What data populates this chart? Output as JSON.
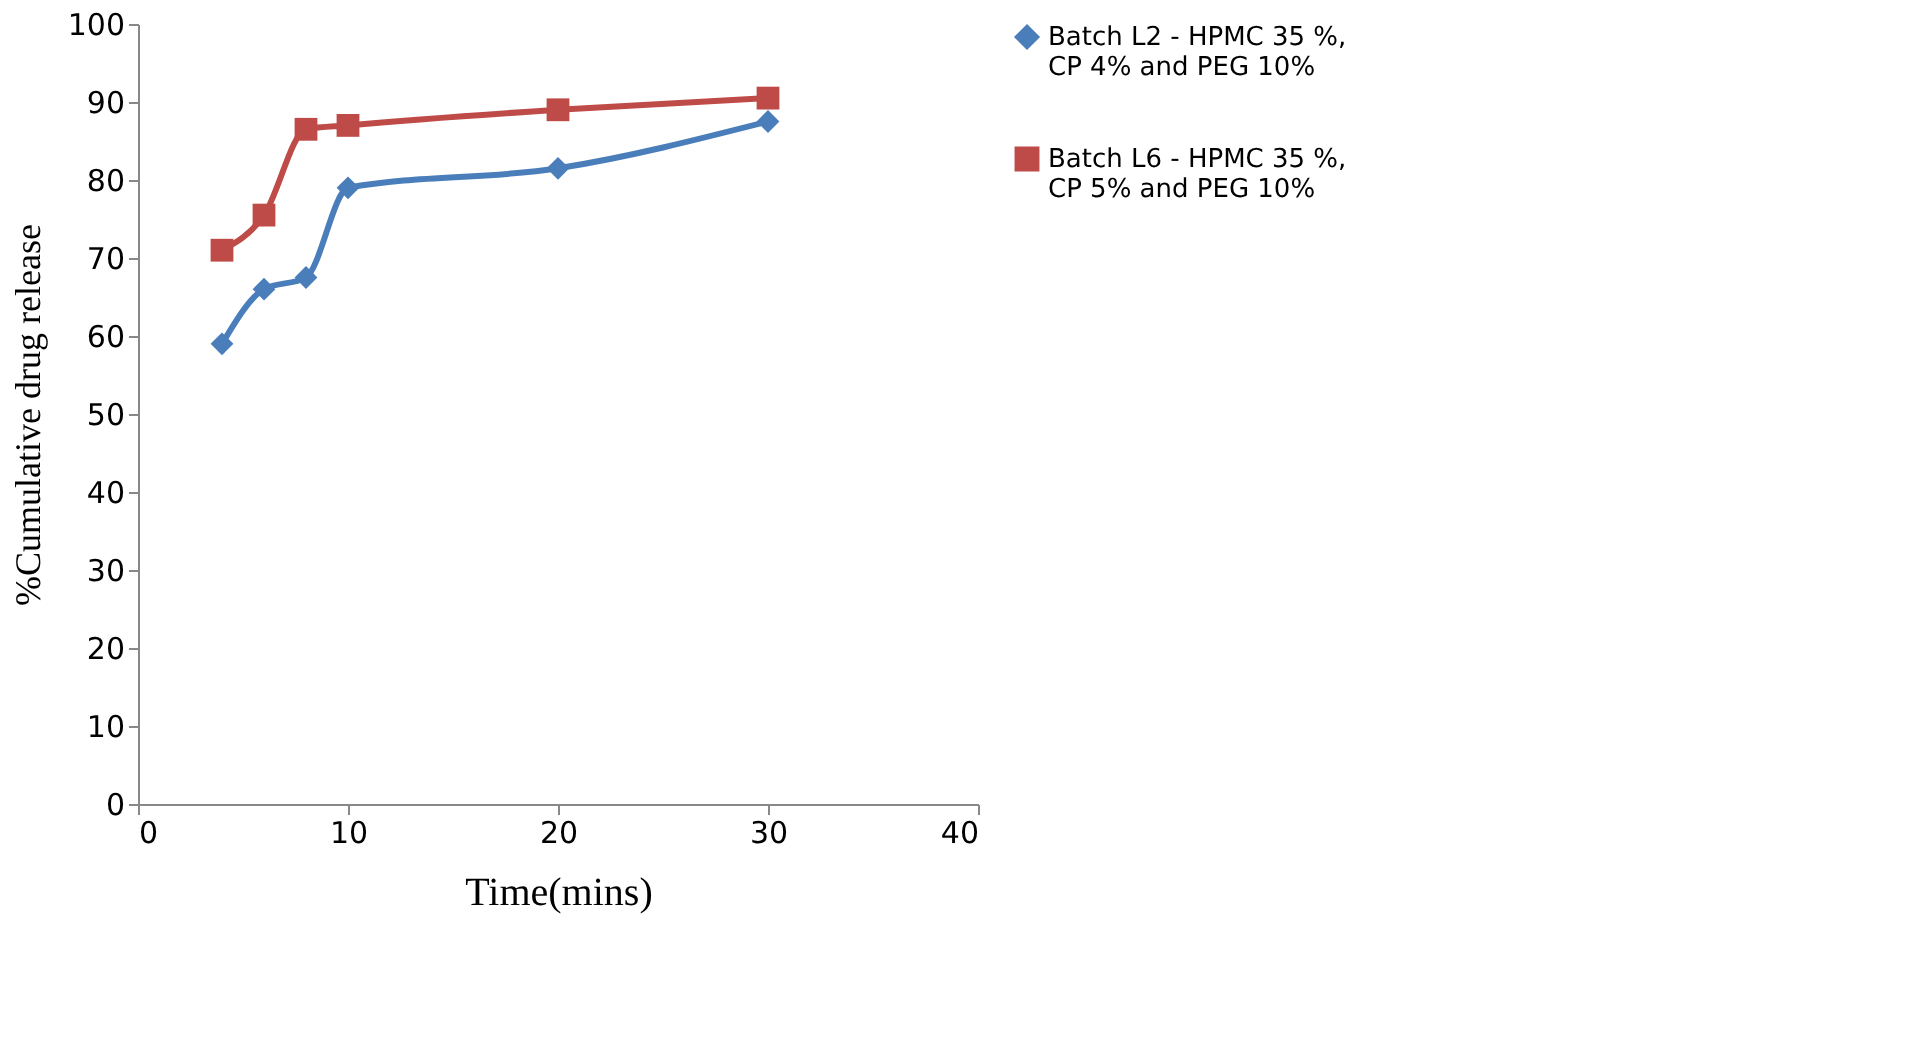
{
  "chart_data": {
    "type": "line",
    "xlabel": "Time(mins)",
    "ylabel": "%Cumulative drug release",
    "xlim": [
      0,
      40
    ],
    "xticks": [
      0,
      10,
      20,
      30,
      40
    ],
    "ylim": [
      0,
      100
    ],
    "yticks": [
      0,
      10,
      20,
      30,
      40,
      50,
      60,
      70,
      80,
      90,
      100
    ],
    "grid": false,
    "legend": "right",
    "line_style": "solid",
    "series": [
      {
        "name": "Batch L2 - HPMC 35 %, CP 4% and PEG 10%",
        "color": "#4a7ebb",
        "marker": "diamond",
        "x": [
          4,
          6,
          8,
          10,
          20,
          30
        ],
        "values": [
          59,
          66,
          67.5,
          79,
          81.5,
          87.5
        ]
      },
      {
        "name": "Batch L6 - HPMC 35 %, CP 5% and PEG 10%",
        "color": "#be4b48",
        "marker": "square",
        "x": [
          4,
          6,
          8,
          10,
          20,
          30
        ],
        "values": [
          71,
          75.5,
          86.5,
          87,
          89,
          90.5
        ]
      }
    ]
  }
}
